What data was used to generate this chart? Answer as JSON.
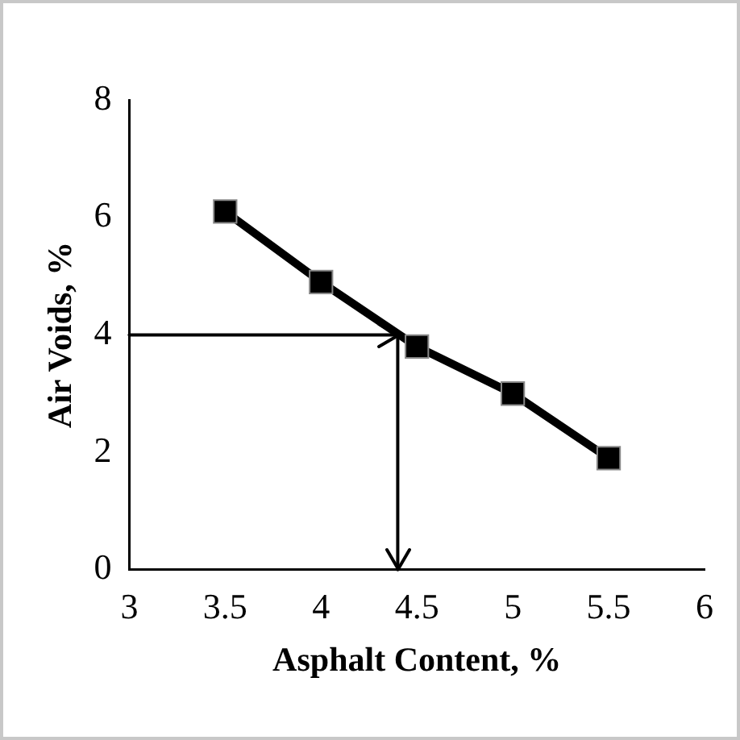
{
  "chart_data": {
    "type": "line",
    "xlabel": "Asphalt Content, %",
    "ylabel": "Air Voids, %",
    "x": [
      3.5,
      4.0,
      4.5,
      5.0,
      5.5
    ],
    "series": [
      {
        "color": "#000000",
        "values": [
          6.1,
          4.9,
          3.8,
          3.0,
          1.9
        ]
      }
    ],
    "xlim": [
      3,
      6
    ],
    "xticks": [
      3,
      3.5,
      4,
      4.5,
      5,
      5.5,
      6
    ],
    "ylim": [
      0,
      8
    ],
    "yticks": [
      0,
      2,
      4,
      6,
      8
    ],
    "grid": false,
    "legend": false,
    "marker": "square",
    "line_style": "solid",
    "ref_lines": [
      {
        "axis": "y",
        "value": 4,
        "color": "#000000"
      },
      {
        "axis": "x",
        "value": 4.4,
        "color": "#000000"
      }
    ]
  }
}
